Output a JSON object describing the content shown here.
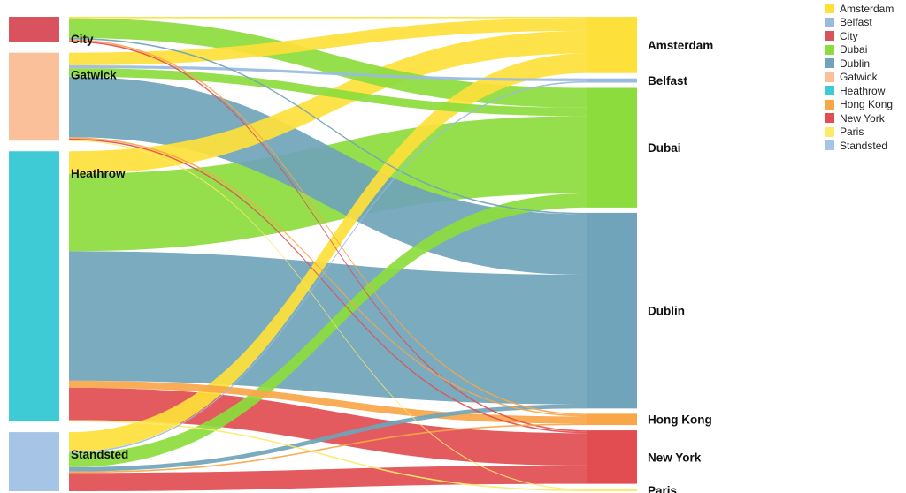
{
  "chart_data": {
    "type": "sankey",
    "title": "",
    "sources": [
      {
        "name": "City",
        "color": "#d9535f"
      },
      {
        "name": "Gatwick",
        "color": "#f9c09a"
      },
      {
        "name": "Heathrow",
        "color": "#3fcbd6"
      },
      {
        "name": "Standsted",
        "color": "#a6c5e6"
      }
    ],
    "targets": [
      {
        "name": "Amsterdam",
        "color": "#fde03a"
      },
      {
        "name": "Belfast",
        "color": "#99bbde"
      },
      {
        "name": "Dubai",
        "color": "#8cdc3d"
      },
      {
        "name": "Dublin",
        "color": "#6fa4ba"
      },
      {
        "name": "Hong Kong",
        "color": "#f9a648"
      },
      {
        "name": "New York",
        "color": "#e24d51"
      },
      {
        "name": "Paris",
        "color": "#fde96a"
      }
    ],
    "flows": [
      {
        "source": "City",
        "target": "Amsterdam",
        "value": 1
      },
      {
        "source": "City",
        "target": "Dubai",
        "value": 14
      },
      {
        "source": "City",
        "target": "Dublin",
        "value": 1
      },
      {
        "source": "City",
        "target": "Hong Kong",
        "value": 1
      },
      {
        "source": "City",
        "target": "New York",
        "value": 1
      },
      {
        "source": "Gatwick",
        "target": "Amsterdam",
        "value": 9
      },
      {
        "source": "Gatwick",
        "target": "Belfast",
        "value": 2
      },
      {
        "source": "Gatwick",
        "target": "Dubai",
        "value": 6
      },
      {
        "source": "Gatwick",
        "target": "Dublin",
        "value": 43
      },
      {
        "source": "Gatwick",
        "target": "Hong Kong",
        "value": 1
      },
      {
        "source": "Gatwick",
        "target": "New York",
        "value": 1
      },
      {
        "source": "Gatwick",
        "target": "Paris",
        "value": 0.5
      },
      {
        "source": "Heathrow",
        "target": "Amsterdam",
        "value": 16
      },
      {
        "source": "Heathrow",
        "target": "Dubai",
        "value": 55
      },
      {
        "source": "Heathrow",
        "target": "Dublin",
        "value": 92
      },
      {
        "source": "Heathrow",
        "target": "Hong Kong",
        "value": 5
      },
      {
        "source": "Heathrow",
        "target": "New York",
        "value": 23
      },
      {
        "source": "Heathrow",
        "target": "Paris",
        "value": 1
      },
      {
        "source": "Standsted",
        "target": "Amsterdam",
        "value": 14
      },
      {
        "source": "Standsted",
        "target": "Belfast",
        "value": 1
      },
      {
        "source": "Standsted",
        "target": "Dubai",
        "value": 10
      },
      {
        "source": "Standsted",
        "target": "Dublin",
        "value": 3
      },
      {
        "source": "Standsted",
        "target": "Hong Kong",
        "value": 1
      },
      {
        "source": "Standsted",
        "target": "New York",
        "value": 13
      }
    ],
    "legend": {
      "position": "top-right",
      "entries": [
        {
          "label": "Amsterdam",
          "color": "#fde03a"
        },
        {
          "label": "Belfast",
          "color": "#99bbde"
        },
        {
          "label": "City",
          "color": "#d9535f"
        },
        {
          "label": "Dubai",
          "color": "#8cdc3d"
        },
        {
          "label": "Dublin",
          "color": "#6fa4ba"
        },
        {
          "label": "Gatwick",
          "color": "#f9c09a"
        },
        {
          "label": "Heathrow",
          "color": "#3fcbd6"
        },
        {
          "label": "Hong Kong",
          "color": "#f9a648"
        },
        {
          "label": "New York",
          "color": "#e24d51"
        },
        {
          "label": "Paris",
          "color": "#fde96a"
        },
        {
          "label": "Standsted",
          "color": "#a6c5e6"
        }
      ]
    }
  }
}
